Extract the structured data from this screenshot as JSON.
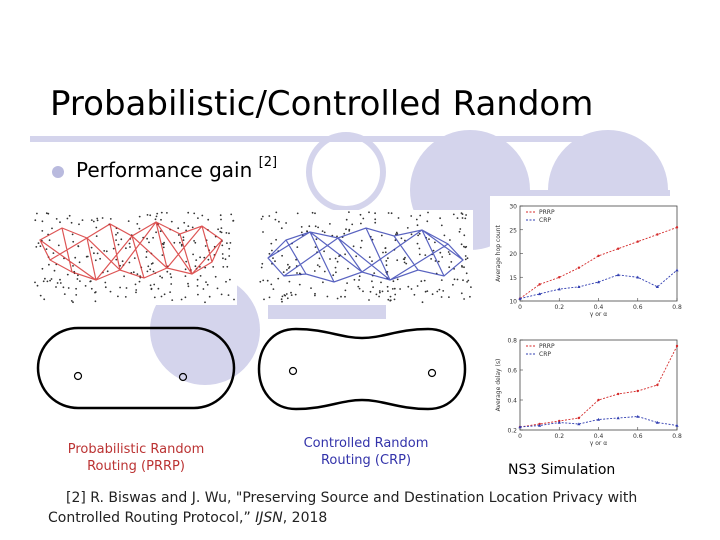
{
  "slide": {
    "title": "Probabilistic/Controlled Random",
    "bullet": {
      "text": "Performance gain",
      "ref_marker": "[2]"
    },
    "captions": {
      "prrp": [
        "Probabilistic Random",
        "Routing (PRRP)"
      ],
      "crp": [
        "Controlled Random",
        "Routing (CRP)"
      ],
      "ns3": "NS3 Simulation"
    },
    "reference": {
      "line1": "[2] R. Biswas and J. Wu, \"Preserving Source and Destination Location Privacy with",
      "line2_prefix": "Controlled Routing Protocol,” ",
      "line2_venue": "IJSN",
      "line2_year": ", 2018"
    },
    "colors": {
      "accent": "#d4d4ec",
      "prrp_red": "#d42a2a",
      "crp_blue": "#2f3cb0"
    }
  },
  "chart_data": [
    {
      "type": "line",
      "ylabel": "Average hop count",
      "xlabel": "γ or α",
      "x": [
        0,
        0.1,
        0.2,
        0.3,
        0.4,
        0.5,
        0.6,
        0.7,
        0.8
      ],
      "xticks": [
        "0",
        "0.2",
        "0.4",
        "0.6",
        "0.8"
      ],
      "yticks": [
        "10",
        "15",
        "20",
        "25",
        "30"
      ],
      "ylim": [
        10,
        30
      ],
      "legend": "top-left",
      "series": [
        {
          "name": "PRRP",
          "values": [
            10.5,
            13.5,
            15,
            17,
            19.5,
            21,
            22.5,
            24,
            25.5
          ]
        },
        {
          "name": "CRP",
          "values": [
            10.5,
            11.5,
            12.5,
            13,
            14,
            15.5,
            15,
            13,
            16.5
          ]
        }
      ]
    },
    {
      "type": "line",
      "ylabel": "Average delay (s)",
      "xlabel": "γ or α",
      "x": [
        0,
        0.1,
        0.2,
        0.3,
        0.4,
        0.5,
        0.6,
        0.7,
        0.8
      ],
      "xticks": [
        "0",
        "0.2",
        "0.4",
        "0.6",
        "0.8"
      ],
      "yticks": [
        "0.2",
        "0.4",
        "0.6",
        "0.8"
      ],
      "ylim": [
        0.2,
        0.8
      ],
      "legend": "top-left",
      "series": [
        {
          "name": "PRRP",
          "values": [
            0.22,
            0.24,
            0.26,
            0.28,
            0.4,
            0.44,
            0.46,
            0.5,
            0.76
          ]
        },
        {
          "name": "CRP",
          "values": [
            0.22,
            0.23,
            0.25,
            0.24,
            0.27,
            0.28,
            0.29,
            0.25,
            0.23
          ]
        }
      ]
    }
  ]
}
